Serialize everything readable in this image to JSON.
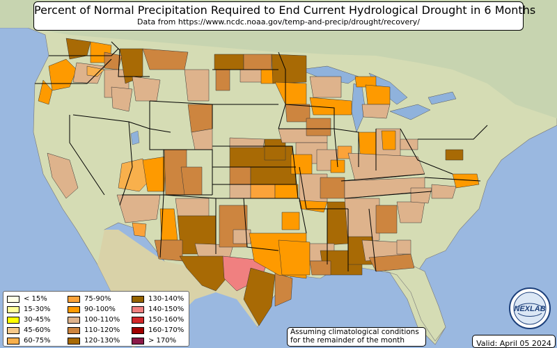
{
  "title": "Percent of Normal Precipitation Required to End Current Hydrological Drought in 6 Months",
  "subtitle": "Data from https://www.ncdc.noaa.gov/temp-and-precip/drought/recovery/",
  "legend": [
    {
      "label": "< 15%",
      "color": "#ffffe6"
    },
    {
      "label": "15-30%",
      "color": "#ffff9a"
    },
    {
      "label": "30-45%",
      "color": "#ffff00"
    },
    {
      "label": "45-60%",
      "color": "#f6c98a"
    },
    {
      "label": "60-75%",
      "color": "#f8b04c"
    },
    {
      "label": "75-90%",
      "color": "#fba33a"
    },
    {
      "label": "90-100%",
      "color": "#fe9a00"
    },
    {
      "label": "100-110%",
      "color": "#deb38c"
    },
    {
      "label": "110-120%",
      "color": "#cd853f"
    },
    {
      "label": "120-130%",
      "color": "#a86a05"
    },
    {
      "label": "130-140%",
      "color": "#966400"
    },
    {
      "label": "140-150%",
      "color": "#f08080"
    },
    {
      "label": "150-160%",
      "color": "#d2282a"
    },
    {
      "label": "160-170%",
      "color": "#a00000"
    },
    {
      "label": "> 170%",
      "color": "#8b1a48"
    }
  ],
  "note": [
    "Assuming climatological conditions",
    "for the remainder of the month"
  ],
  "valid_label": "Valid: April 05 2024",
  "logo_text": "NEXLAB",
  "colors": {
    "ocean": "#9ab8e0",
    "land": "#d5dcb4",
    "lakes": "#8fb2dc"
  }
}
